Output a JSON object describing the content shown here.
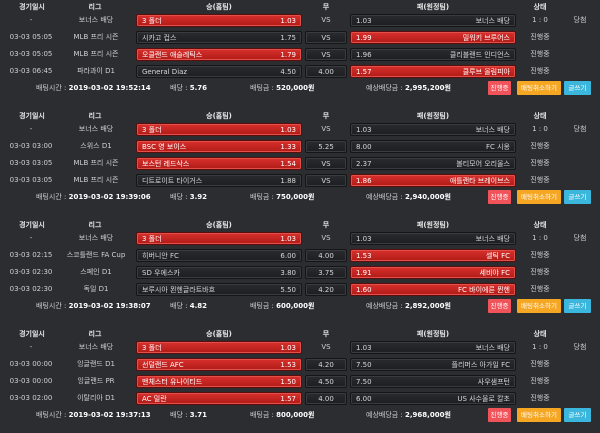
{
  "headers": {
    "date": "경기일시",
    "league": "리그",
    "home": "승(홈팀)",
    "draw": "무",
    "away": "패(원정팀)",
    "status": "상태"
  },
  "labels": {
    "bet_time": "배팅시간 :",
    "odds": "배당 :",
    "amount": "배팅금 :",
    "expected": "예상배당금 :"
  },
  "buttons": {
    "in_progress": "진행중",
    "cancel": "배팅취소하기",
    "write": "글쓰기"
  },
  "colors": {
    "selected": "#c8241f",
    "in_progress_btn": "#f0535a",
    "cancel_btn": "#f5a623",
    "write_btn": "#3bb6dc"
  },
  "slips": [
    {
      "bet_time": "2019-03-02 19:52:14",
      "odds": "5.76",
      "amount": "520,000원",
      "expected": "2,995,200원",
      "games": [
        {
          "date": "-",
          "league": "보너스 배당",
          "home": "3 폴더",
          "home_odds": "1.03",
          "home_sel": true,
          "draw": "VS",
          "away_odds": "1.03",
          "away": "보너스 배당",
          "status": "1 : 0",
          "result": "당첨",
          "bonus": true
        },
        {
          "date": "03-03 05:05",
          "league": "MLB 프리 시즌",
          "home": "시카고 컵스",
          "home_odds": "1.75",
          "draw": "VS",
          "away_odds": "1.99",
          "away": "밀워키 브루어스",
          "away_sel": true,
          "status": "진행중"
        },
        {
          "date": "03-03 05:05",
          "league": "MLB 프리 시즌",
          "home": "오클랜드 애슬레틱스",
          "home_odds": "1.79",
          "home_sel": true,
          "draw": "VS",
          "away_odds": "1.96",
          "away": "클리블랜드 인디언스",
          "status": "진행중"
        },
        {
          "date": "03-03 06:45",
          "league": "파라과이 D1",
          "home": "General Diaz",
          "home_odds": "4.50",
          "draw": "4.00",
          "away_odds": "1.57",
          "away": "클루브 올림피아",
          "away_sel": true,
          "status": "진행중"
        }
      ]
    },
    {
      "bet_time": "2019-03-02 19:39:06",
      "odds": "3.92",
      "amount": "750,000원",
      "expected": "2,940,000원",
      "games": [
        {
          "date": "-",
          "league": "보너스 배당",
          "home": "3 폴더",
          "home_odds": "1.03",
          "home_sel": true,
          "draw": "VS",
          "away_odds": "1.03",
          "away": "보너스 배당",
          "status": "1 : 0",
          "result": "당첨",
          "bonus": true
        },
        {
          "date": "03-03 03:00",
          "league": "스위스 D1",
          "home": "BSC 영 보이스",
          "home_odds": "1.33",
          "home_sel": true,
          "draw": "5.25",
          "away_odds": "8.00",
          "away": "FC 시옹",
          "status": "진행중"
        },
        {
          "date": "03-03 03:05",
          "league": "MLB 프리 시즌",
          "home": "보스턴 레드삭스",
          "home_odds": "1.54",
          "home_sel": true,
          "draw": "VS",
          "away_odds": "2.37",
          "away": "볼티모어 오리올스",
          "status": "진행중"
        },
        {
          "date": "03-03 03:05",
          "league": "MLB 프리 시즌",
          "home": "디트로이트 타이거스",
          "home_odds": "1.88",
          "draw": "VS",
          "away_odds": "1.86",
          "away": "애틀랜타 브레이브스",
          "away_sel": true,
          "status": "진행중"
        }
      ]
    },
    {
      "bet_time": "2019-03-02 19:38:07",
      "odds": "4.82",
      "amount": "600,000원",
      "expected": "2,892,000원",
      "games": [
        {
          "date": "-",
          "league": "보너스 배당",
          "home": "3 폴더",
          "home_odds": "1.03",
          "home_sel": true,
          "draw": "VS",
          "away_odds": "1.03",
          "away": "보너스 배당",
          "status": "1 : 0",
          "result": "당첨",
          "bonus": true
        },
        {
          "date": "03-03 02:15",
          "league": "스코틀랜드 FA Cup",
          "home": "히버니안 FC",
          "home_odds": "6.00",
          "draw": "4.00",
          "away_odds": "1.53",
          "away": "셀틱 FC",
          "away_sel": true,
          "status": "진행중"
        },
        {
          "date": "03-03 02:30",
          "league": "스페인 D1",
          "home": "SD 우에스카",
          "home_odds": "3.80",
          "draw": "3.75",
          "away_odds": "1.91",
          "away": "세비야 FC",
          "away_sel": true,
          "status": "진행중"
        },
        {
          "date": "03-03 02:30",
          "league": "독일 D1",
          "home": "보루시아 묀헨글라트바흐",
          "home_odds": "5.50",
          "draw": "4.20",
          "away_odds": "1.60",
          "away": "FC 바이에른 뮌헨",
          "away_sel": true,
          "status": "진행중"
        }
      ]
    },
    {
      "bet_time": "2019-03-02 19:37:13",
      "odds": "3.71",
      "amount": "800,000원",
      "expected": "2,968,000원",
      "games": [
        {
          "date": "-",
          "league": "보너스 배당",
          "home": "3 폴더",
          "home_odds": "1.03",
          "home_sel": true,
          "draw": "VS",
          "away_odds": "1.03",
          "away": "보너스 배당",
          "status": "1 : 0",
          "result": "당첨",
          "bonus": true
        },
        {
          "date": "03-03 00:00",
          "league": "잉글랜드 D1",
          "home": "선덜랜드 AFC",
          "home_odds": "1.53",
          "home_sel": true,
          "draw": "4.20",
          "away_odds": "7.50",
          "away": "플리머스 아가일 FC",
          "status": "진행중"
        },
        {
          "date": "03-03 00:00",
          "league": "잉글랜드 PR",
          "home": "맨체스터 유나이티드",
          "home_odds": "1.50",
          "home_sel": true,
          "draw": "4.50",
          "away_odds": "7.50",
          "away": "사우샘프턴",
          "status": "진행중"
        },
        {
          "date": "03-03 02:00",
          "league": "이탈리아 D1",
          "home": "AC 밀란",
          "home_odds": "1.57",
          "home_sel": true,
          "draw": "4.00",
          "away_odds": "6.00",
          "away": "US 사수올로 칼초",
          "status": "진행중"
        }
      ]
    }
  ]
}
